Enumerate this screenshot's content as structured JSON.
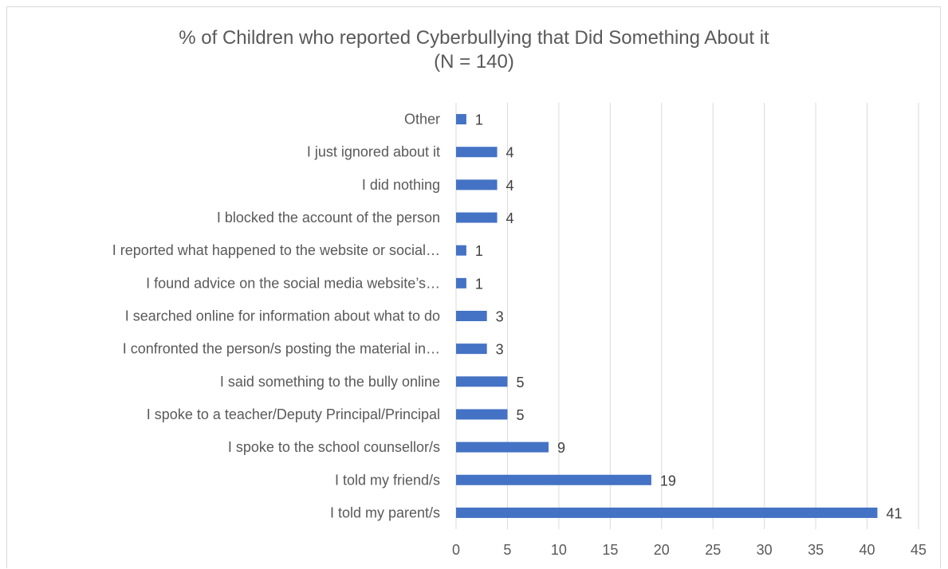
{
  "chart_data": {
    "type": "bar",
    "orientation": "horizontal",
    "title": "% of Children who reported Cyberbullying that Did Something About it",
    "subtitle": "(N = 140)",
    "categories": [
      "Other",
      "I just ignored about it",
      "I did nothing",
      "I blocked the account of the person",
      "I reported what happened to the website or social…",
      "I found advice on the social media website’s…",
      "I searched online for information about what to do",
      "I confronted the person/s posting the material in…",
      "I said something to the bully online",
      "I spoke to a teacher/Deputy Principal/Principal",
      "I spoke to the school counsellor/s",
      "I told my friend/s",
      "I told my parent/s"
    ],
    "values": [
      1,
      4,
      4,
      4,
      1,
      1,
      3,
      3,
      5,
      5,
      9,
      19,
      41
    ],
    "data_labels": [
      "1",
      "4",
      "4",
      "4",
      "1",
      "1",
      "3",
      "3",
      "5",
      "5",
      "9",
      "19",
      "41"
    ],
    "xticks": [
      "0",
      "5",
      "10",
      "15",
      "20",
      "25",
      "30",
      "35",
      "40",
      "45"
    ],
    "xlim": [
      0,
      45
    ],
    "grid": true,
    "legend": "none",
    "bar_color": "#4472c4"
  }
}
